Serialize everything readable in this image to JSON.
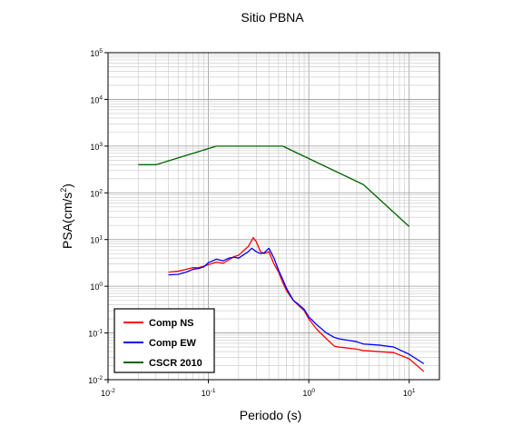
{
  "chart_data": {
    "type": "line",
    "title": "Sitio PBNA",
    "xlabel": "Periodo (s)",
    "ylabel_main": "PSA(cm/s",
    "ylabel_sup": "2",
    "ylabel_tail": ")",
    "x_scale": "log",
    "y_scale": "log",
    "xlim": [
      0.01,
      20
    ],
    "ylim": [
      0.01,
      100000
    ],
    "grid": true,
    "legend_position": "bottom-left",
    "x_ticks": [
      {
        "value": 0.01,
        "base": "10",
        "exp": "-2"
      },
      {
        "value": 0.1,
        "base": "10",
        "exp": "-1"
      },
      {
        "value": 1,
        "base": "10",
        "exp": "0"
      },
      {
        "value": 10,
        "base": "10",
        "exp": "1"
      }
    ],
    "y_ticks": [
      {
        "value": 0.01,
        "base": "10",
        "exp": "-2"
      },
      {
        "value": 0.1,
        "base": "10",
        "exp": "-1"
      },
      {
        "value": 1,
        "base": "10",
        "exp": "0"
      },
      {
        "value": 10,
        "base": "10",
        "exp": "1"
      },
      {
        "value": 100,
        "base": "10",
        "exp": "2"
      },
      {
        "value": 1000,
        "base": "10",
        "exp": "3"
      },
      {
        "value": 10000,
        "base": "10",
        "exp": "4"
      },
      {
        "value": 100000,
        "base": "10",
        "exp": "5"
      }
    ],
    "series": [
      {
        "name": "Comp NS",
        "color": "#ff0000",
        "points": [
          [
            0.04,
            2.0
          ],
          [
            0.05,
            2.1
          ],
          [
            0.06,
            2.3
          ],
          [
            0.07,
            2.5
          ],
          [
            0.08,
            2.5
          ],
          [
            0.09,
            2.7
          ],
          [
            0.1,
            2.9
          ],
          [
            0.12,
            3.3
          ],
          [
            0.14,
            3.1
          ],
          [
            0.16,
            3.7
          ],
          [
            0.18,
            4.3
          ],
          [
            0.2,
            4.6
          ],
          [
            0.22,
            5.6
          ],
          [
            0.25,
            7.1
          ],
          [
            0.28,
            11.0
          ],
          [
            0.3,
            9.0
          ],
          [
            0.33,
            5.5
          ],
          [
            0.36,
            5.0
          ],
          [
            0.4,
            5.5
          ],
          [
            0.45,
            3.0
          ],
          [
            0.5,
            2.0
          ],
          [
            0.55,
            1.2
          ],
          [
            0.6,
            0.8
          ],
          [
            0.7,
            0.5
          ],
          [
            0.8,
            0.38
          ],
          [
            0.9,
            0.3
          ],
          [
            1.0,
            0.2
          ],
          [
            1.2,
            0.12
          ],
          [
            1.5,
            0.075
          ],
          [
            1.8,
            0.052
          ],
          [
            2.0,
            0.05
          ],
          [
            3.0,
            0.045
          ],
          [
            3.5,
            0.042
          ],
          [
            5.0,
            0.04
          ],
          [
            7.0,
            0.038
          ],
          [
            10.0,
            0.028
          ],
          [
            14.0,
            0.015
          ]
        ]
      },
      {
        "name": "Comp EW",
        "color": "#0000ff",
        "points": [
          [
            0.04,
            1.75
          ],
          [
            0.05,
            1.8
          ],
          [
            0.06,
            2.0
          ],
          [
            0.07,
            2.3
          ],
          [
            0.08,
            2.4
          ],
          [
            0.09,
            2.6
          ],
          [
            0.1,
            3.2
          ],
          [
            0.12,
            3.8
          ],
          [
            0.14,
            3.5
          ],
          [
            0.16,
            4.0
          ],
          [
            0.18,
            4.2
          ],
          [
            0.2,
            4.0
          ],
          [
            0.22,
            4.6
          ],
          [
            0.25,
            5.5
          ],
          [
            0.27,
            6.5
          ],
          [
            0.3,
            5.5
          ],
          [
            0.33,
            5.0
          ],
          [
            0.36,
            5.2
          ],
          [
            0.4,
            6.5
          ],
          [
            0.45,
            4.0
          ],
          [
            0.5,
            2.2
          ],
          [
            0.55,
            1.4
          ],
          [
            0.6,
            0.9
          ],
          [
            0.7,
            0.5
          ],
          [
            0.8,
            0.4
          ],
          [
            0.9,
            0.32
          ],
          [
            1.0,
            0.22
          ],
          [
            1.2,
            0.15
          ],
          [
            1.5,
            0.1
          ],
          [
            1.8,
            0.08
          ],
          [
            2.0,
            0.075
          ],
          [
            3.0,
            0.065
          ],
          [
            3.5,
            0.058
          ],
          [
            5.0,
            0.055
          ],
          [
            7.0,
            0.05
          ],
          [
            10.0,
            0.035
          ],
          [
            14.0,
            0.022
          ]
        ]
      },
      {
        "name": "CSCR 2010",
        "color": "#006400",
        "points": [
          [
            0.02,
            400
          ],
          [
            0.03,
            400
          ],
          [
            0.12,
            1000
          ],
          [
            0.55,
            1000
          ],
          [
            3.5,
            150
          ],
          [
            10.0,
            19
          ]
        ]
      }
    ]
  }
}
